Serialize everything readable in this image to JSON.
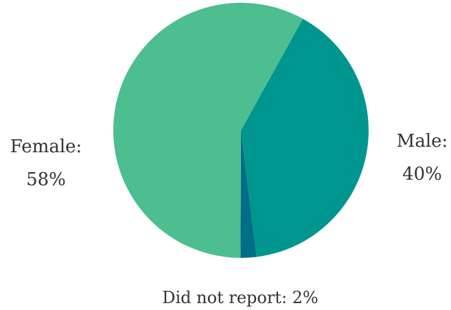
{
  "chart_data": {
    "type": "pie",
    "slices": [
      {
        "label": "Female",
        "value": 58,
        "color": "#4cbe8f",
        "name_text": "Female:",
        "pct_text": "58%"
      },
      {
        "label": "Male",
        "value": 40,
        "color": "#009690",
        "name_text": "Male:",
        "pct_text": "40%"
      },
      {
        "label": "Did not report",
        "value": 2,
        "color": "#006e86",
        "full_text": "Did not report: 2%"
      }
    ]
  }
}
